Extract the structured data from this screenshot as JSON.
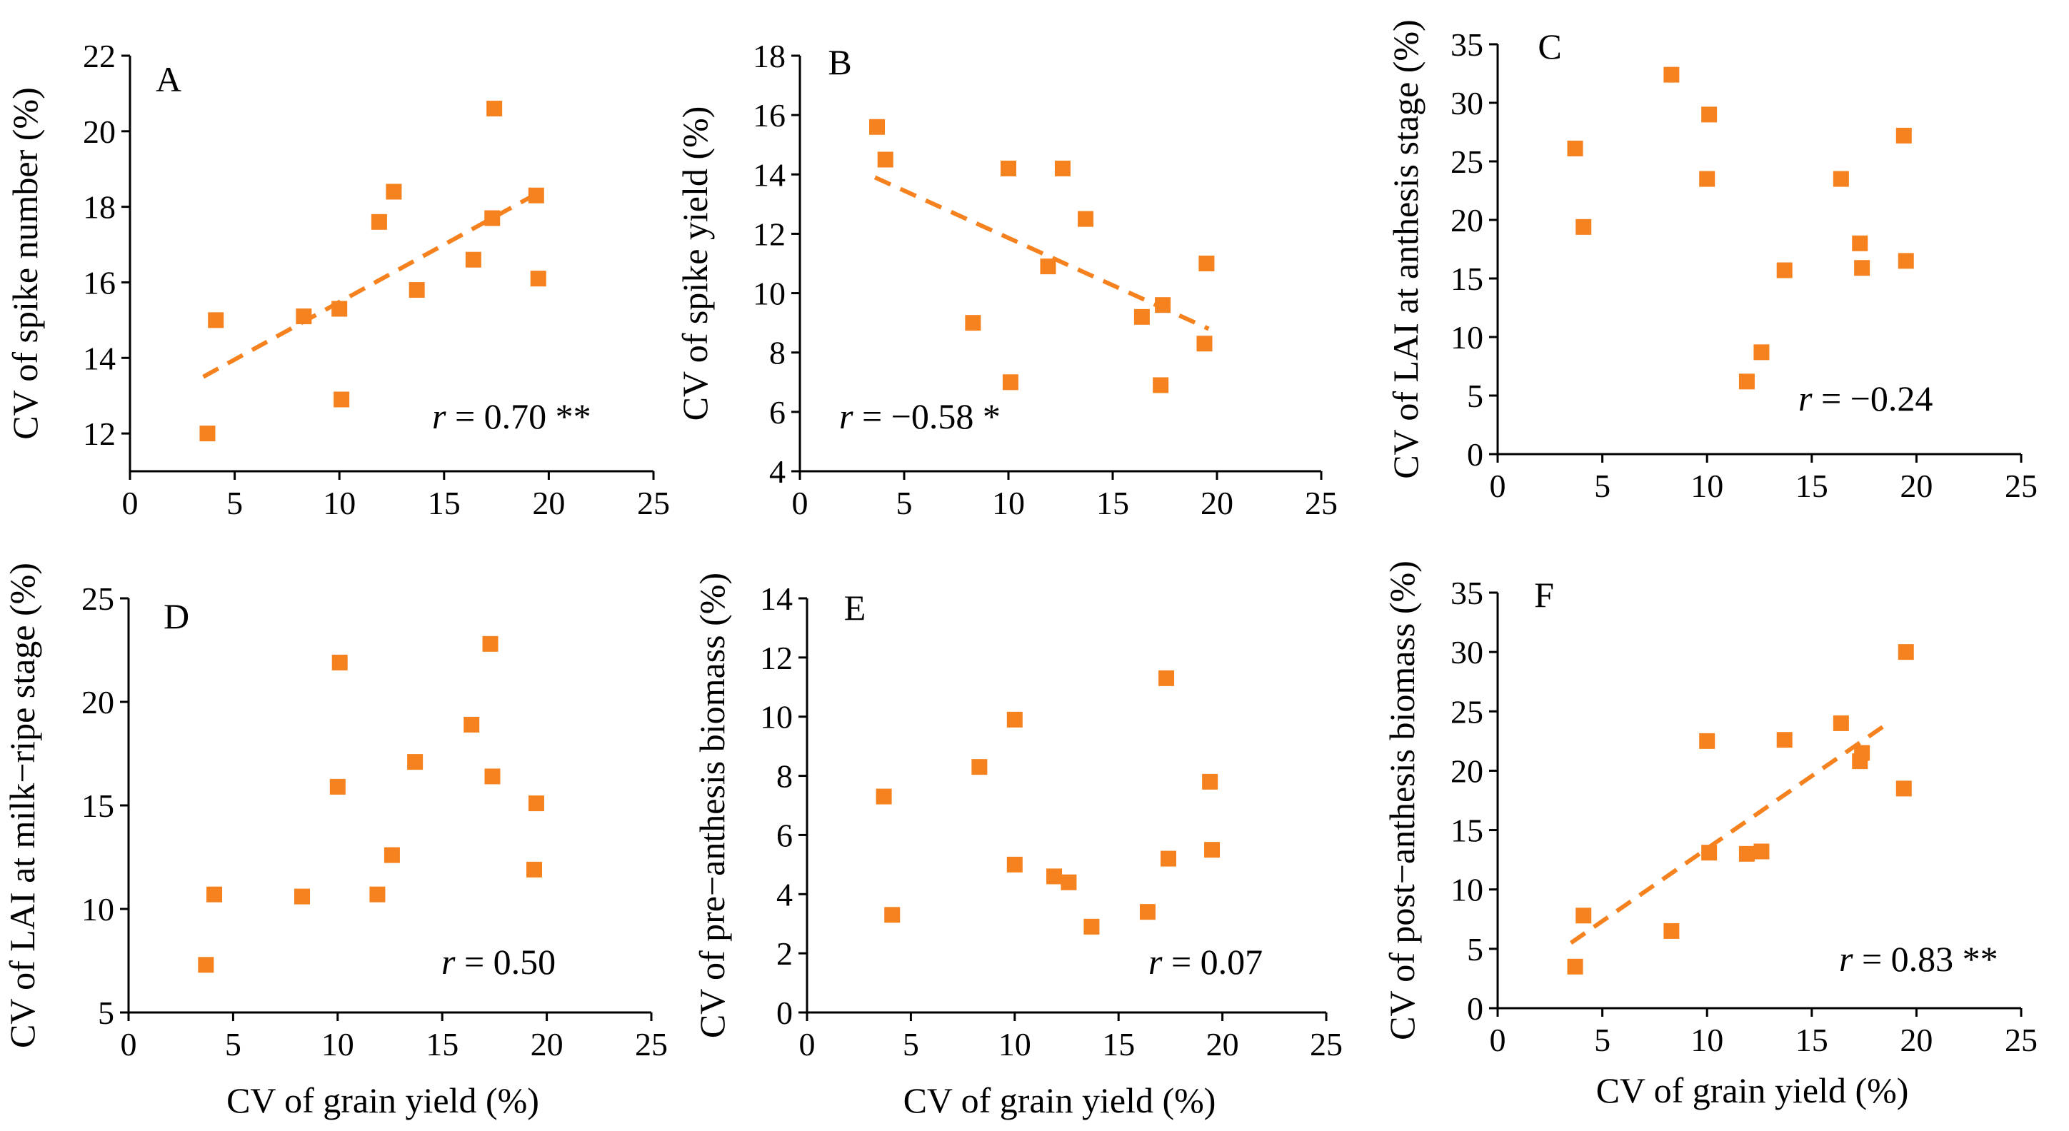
{
  "colors": {
    "marker": "#f5821f",
    "axis": "#000000",
    "background": "#ffffff"
  },
  "chart_data": [
    {
      "type": "scatter",
      "panel": "A",
      "xlabel": "CV of grain yield (%)",
      "ylabel": "CV of spike number (%)",
      "xlim": [
        0,
        25
      ],
      "ylim": [
        11,
        22
      ],
      "xticks": [
        0,
        5,
        10,
        15,
        20,
        25
      ],
      "yticks": [
        12,
        14,
        16,
        18,
        20,
        22
      ],
      "points": [
        [
          3.7,
          12.0
        ],
        [
          4.1,
          15.0
        ],
        [
          8.3,
          15.1
        ],
        [
          10.0,
          15.3
        ],
        [
          10.1,
          12.9
        ],
        [
          11.9,
          17.6
        ],
        [
          12.6,
          18.4
        ],
        [
          13.7,
          15.8
        ],
        [
          16.4,
          16.6
        ],
        [
          17.3,
          17.7
        ],
        [
          17.4,
          20.6
        ],
        [
          19.4,
          18.3
        ],
        [
          19.5,
          16.1
        ]
      ],
      "trendline": [
        [
          3.5,
          13.5
        ],
        [
          19.6,
          18.4
        ]
      ],
      "r_prefix": "r",
      "r_text": " = 0.70 **"
    },
    {
      "type": "scatter",
      "panel": "B",
      "xlabel": "",
      "ylabel": "CV of spike yield (%)",
      "xlim": [
        0,
        25
      ],
      "ylim": [
        4,
        18
      ],
      "xticks": [
        0,
        5,
        10,
        15,
        20,
        25
      ],
      "yticks": [
        4,
        6,
        8,
        10,
        12,
        14,
        16,
        18
      ],
      "points": [
        [
          3.7,
          15.6
        ],
        [
          4.1,
          14.5
        ],
        [
          8.3,
          9.0
        ],
        [
          10.0,
          14.2
        ],
        [
          10.1,
          7.0
        ],
        [
          11.9,
          10.9
        ],
        [
          12.6,
          14.2
        ],
        [
          13.7,
          12.5
        ],
        [
          16.4,
          9.2
        ],
        [
          17.3,
          6.9
        ],
        [
          17.4,
          9.6
        ],
        [
          19.4,
          8.3
        ],
        [
          19.5,
          11.0
        ]
      ],
      "trendline": [
        [
          3.6,
          13.9
        ],
        [
          19.6,
          8.8
        ]
      ],
      "r_prefix": "r",
      "r_text": " = −0.58 *"
    },
    {
      "type": "scatter",
      "panel": "C",
      "xlabel": "",
      "ylabel": "CV of LAI at anthesis stage (%)",
      "xlim": [
        0,
        25
      ],
      "ylim": [
        0,
        35
      ],
      "xticks": [
        0,
        5,
        10,
        15,
        20,
        25
      ],
      "yticks": [
        0,
        5,
        10,
        15,
        20,
        25,
        30,
        35
      ],
      "points": [
        [
          3.7,
          26.1
        ],
        [
          4.1,
          19.4
        ],
        [
          8.3,
          32.4
        ],
        [
          10.0,
          23.5
        ],
        [
          10.1,
          29.0
        ],
        [
          11.9,
          6.2
        ],
        [
          12.6,
          8.7
        ],
        [
          13.7,
          15.7
        ],
        [
          16.4,
          23.5
        ],
        [
          17.3,
          18.0
        ],
        [
          17.4,
          15.9
        ],
        [
          19.4,
          27.2
        ],
        [
          19.5,
          16.5
        ]
      ],
      "trendline": [],
      "r_prefix": "r",
      "r_text": " = −0.24"
    },
    {
      "type": "scatter",
      "panel": "D",
      "xlabel": "CV of grain yield (%)",
      "ylabel": "CV of LAI at milk−ripe stage (%)",
      "xlim": [
        0,
        25
      ],
      "ylim": [
        5,
        25
      ],
      "xticks": [
        0,
        5,
        10,
        15,
        20,
        25
      ],
      "yticks": [
        5,
        10,
        15,
        20,
        25
      ],
      "points": [
        [
          3.7,
          7.3
        ],
        [
          4.1,
          10.7
        ],
        [
          8.3,
          10.6
        ],
        [
          10.0,
          15.9
        ],
        [
          10.1,
          21.9
        ],
        [
          11.9,
          10.7
        ],
        [
          12.6,
          12.6
        ],
        [
          13.7,
          17.1
        ],
        [
          16.4,
          18.9
        ],
        [
          17.3,
          22.8
        ],
        [
          17.4,
          16.4
        ],
        [
          19.4,
          11.9
        ],
        [
          19.5,
          15.1
        ]
      ],
      "trendline": [],
      "r_prefix": "r",
      "r_text": " = 0.50"
    },
    {
      "type": "scatter",
      "panel": "E",
      "xlabel": "CV of grain yield (%)",
      "ylabel": "CV of pre−anthesis biomass (%)",
      "xlim": [
        0,
        25
      ],
      "ylim": [
        0,
        14
      ],
      "xticks": [
        0,
        5,
        10,
        15,
        20,
        25
      ],
      "yticks": [
        0,
        2,
        4,
        6,
        8,
        10,
        12,
        14
      ],
      "points": [
        [
          3.7,
          7.3
        ],
        [
          4.1,
          3.3
        ],
        [
          8.3,
          8.3
        ],
        [
          10.0,
          9.9
        ],
        [
          10.0,
          5.0
        ],
        [
          11.9,
          4.6
        ],
        [
          12.6,
          4.4
        ],
        [
          13.7,
          2.9
        ],
        [
          16.4,
          3.4
        ],
        [
          17.3,
          11.3
        ],
        [
          17.4,
          5.2
        ],
        [
          19.4,
          7.8
        ],
        [
          19.5,
          5.5
        ]
      ],
      "trendline": [],
      "r_prefix": "r",
      "r_text": " = 0.07"
    },
    {
      "type": "scatter",
      "panel": "F",
      "xlabel": "CV of grain yield (%)",
      "ylabel": "CV of post−anthesis biomass (%)",
      "xlim": [
        0,
        25
      ],
      "ylim": [
        0,
        35
      ],
      "xticks": [
        0,
        5,
        10,
        15,
        20,
        25
      ],
      "yticks": [
        0,
        5,
        10,
        15,
        20,
        25,
        30,
        35
      ],
      "points": [
        [
          3.7,
          3.5
        ],
        [
          4.1,
          7.8
        ],
        [
          8.3,
          6.5
        ],
        [
          10.0,
          22.5
        ],
        [
          10.1,
          13.1
        ],
        [
          11.9,
          13.0
        ],
        [
          12.6,
          13.2
        ],
        [
          13.7,
          22.6
        ],
        [
          16.4,
          24.0
        ],
        [
          17.3,
          20.8
        ],
        [
          17.4,
          21.5
        ],
        [
          19.4,
          18.5
        ],
        [
          19.5,
          30.0
        ]
      ],
      "trendline": [
        [
          3.5,
          5.5
        ],
        [
          18.8,
          24.2
        ]
      ],
      "r_prefix": "r",
      "r_text": " = 0.83 **"
    }
  ]
}
